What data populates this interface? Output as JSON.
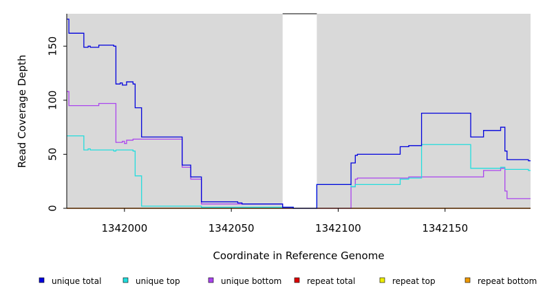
{
  "chart_data": {
    "type": "line",
    "title": "",
    "xlabel": "Coordinate in Reference Genome",
    "ylabel": "Read Coverage Depth",
    "xlim": [
      1341973,
      1342190
    ],
    "ylim": [
      0,
      180
    ],
    "x_ticks": [
      1342000,
      1342050,
      1342100,
      1342150
    ],
    "y_ticks": [
      0,
      50,
      100,
      150
    ],
    "shaded_regions": [
      [
        1341973,
        1342074
      ],
      [
        1342090,
        1342190
      ]
    ],
    "legend_position": "bottom",
    "series": [
      {
        "name": "unique total",
        "color": "#0000dd",
        "points": [
          [
            1341973,
            175
          ],
          [
            1341974,
            162
          ],
          [
            1341981,
            149
          ],
          [
            1341983,
            150
          ],
          [
            1341984,
            149
          ],
          [
            1341988,
            151
          ],
          [
            1341995,
            150
          ],
          [
            1341996,
            115
          ],
          [
            1341998,
            116
          ],
          [
            1341999,
            114
          ],
          [
            1342001,
            117
          ],
          [
            1342004,
            115
          ],
          [
            1342005,
            93
          ],
          [
            1342008,
            66
          ],
          [
            1342027,
            40
          ],
          [
            1342031,
            29
          ],
          [
            1342036,
            6
          ],
          [
            1342053,
            5
          ],
          [
            1342055,
            4
          ],
          [
            1342074,
            1
          ],
          [
            1342079,
            0
          ],
          [
            1342090,
            22
          ],
          [
            1342106,
            42
          ],
          [
            1342108,
            49
          ],
          [
            1342109,
            50
          ],
          [
            1342129,
            57
          ],
          [
            1342133,
            58
          ],
          [
            1342139,
            88
          ],
          [
            1342162,
            66
          ],
          [
            1342168,
            72
          ],
          [
            1342176,
            75
          ],
          [
            1342178,
            53
          ],
          [
            1342179,
            45
          ],
          [
            1342189,
            44
          ],
          [
            1342190,
            44
          ]
        ]
      },
      {
        "name": "unique top",
        "color": "#22dddd",
        "points": [
          [
            1341973,
            67
          ],
          [
            1341981,
            54
          ],
          [
            1341983,
            55
          ],
          [
            1341984,
            54
          ],
          [
            1341995,
            53
          ],
          [
            1341996,
            54
          ],
          [
            1342004,
            53
          ],
          [
            1342005,
            30
          ],
          [
            1342008,
            2
          ],
          [
            1342036,
            1
          ],
          [
            1342074,
            1
          ],
          [
            1342079,
            0
          ],
          [
            1342090,
            22
          ],
          [
            1342106,
            20
          ],
          [
            1342108,
            22
          ],
          [
            1342129,
            27
          ],
          [
            1342133,
            28
          ],
          [
            1342139,
            59
          ],
          [
            1342162,
            37
          ],
          [
            1342176,
            38
          ],
          [
            1342178,
            36
          ],
          [
            1342189,
            35
          ],
          [
            1342190,
            35
          ]
        ]
      },
      {
        "name": "unique bottom",
        "color": "#aa44ee",
        "points": [
          [
            1341973,
            108
          ],
          [
            1341974,
            95
          ],
          [
            1341988,
            97
          ],
          [
            1341996,
            61
          ],
          [
            1341999,
            62
          ],
          [
            1342000,
            60
          ],
          [
            1342001,
            63
          ],
          [
            1342004,
            64
          ],
          [
            1342027,
            38
          ],
          [
            1342031,
            27
          ],
          [
            1342036,
            4
          ],
          [
            1342074,
            0
          ],
          [
            1342106,
            20
          ],
          [
            1342108,
            27
          ],
          [
            1342109,
            28
          ],
          [
            1342133,
            29
          ],
          [
            1342168,
            35
          ],
          [
            1342176,
            37
          ],
          [
            1342178,
            16
          ],
          [
            1342179,
            9
          ],
          [
            1342190,
            9
          ]
        ]
      },
      {
        "name": "repeat total",
        "color": "#dd0000",
        "points": [
          [
            1341973,
            0
          ],
          [
            1342190,
            0
          ]
        ]
      },
      {
        "name": "repeat top",
        "color": "#eeee00",
        "points": [
          [
            1341973,
            0
          ],
          [
            1342190,
            0
          ]
        ]
      },
      {
        "name": "repeat bottom",
        "color": "#ee9900",
        "points": [
          [
            1341973,
            0
          ],
          [
            1342190,
            0
          ]
        ]
      }
    ]
  }
}
